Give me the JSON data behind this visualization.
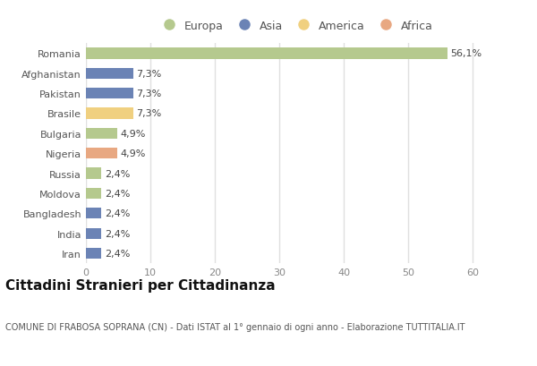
{
  "countries": [
    "Romania",
    "Afghanistan",
    "Pakistan",
    "Brasile",
    "Bulgaria",
    "Nigeria",
    "Russia",
    "Moldova",
    "Bangladesh",
    "India",
    "Iran"
  ],
  "values": [
    56.1,
    7.3,
    7.3,
    7.3,
    4.9,
    4.9,
    2.4,
    2.4,
    2.4,
    2.4,
    2.4
  ],
  "labels": [
    "56,1%",
    "7,3%",
    "7,3%",
    "7,3%",
    "4,9%",
    "4,9%",
    "2,4%",
    "2,4%",
    "2,4%",
    "2,4%",
    "2,4%"
  ],
  "colors": [
    "#b5c98e",
    "#6b83b5",
    "#6b83b5",
    "#f0d080",
    "#b5c98e",
    "#e8a882",
    "#b5c98e",
    "#b5c98e",
    "#6b83b5",
    "#6b83b5",
    "#6b83b5"
  ],
  "legend": [
    {
      "label": "Europa",
      "color": "#b5c98e"
    },
    {
      "label": "Asia",
      "color": "#6b83b5"
    },
    {
      "label": "America",
      "color": "#f0d080"
    },
    {
      "label": "Africa",
      "color": "#e8a882"
    }
  ],
  "xlim": [
    0,
    65
  ],
  "xticks": [
    0,
    10,
    20,
    30,
    40,
    50,
    60
  ],
  "title": "Cittadini Stranieri per Cittadinanza",
  "subtitle": "COMUNE DI FRABOSA SOPRANA (CN) - Dati ISTAT al 1° gennaio di ogni anno - Elaborazione TUTTITALIA.IT",
  "bg_color": "#ffffff",
  "plot_bg_color": "#ffffff",
  "grid_color": "#e0e0e0",
  "bar_height": 0.55,
  "title_fontsize": 11,
  "subtitle_fontsize": 7,
  "label_fontsize": 8,
  "tick_fontsize": 8,
  "legend_fontsize": 9
}
